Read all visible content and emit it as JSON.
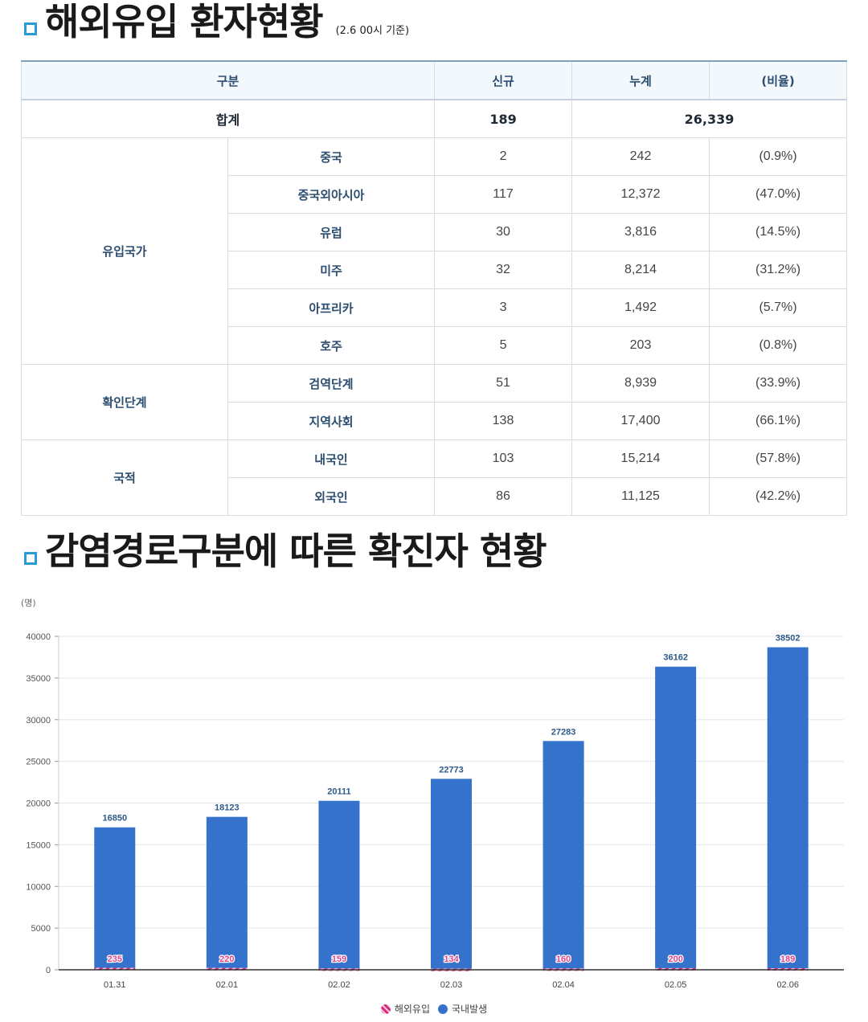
{
  "section1": {
    "title": "해외유입 환자현황",
    "note": "(2.6 00시 기준)"
  },
  "table": {
    "headers": [
      "구분",
      "신규",
      "누계",
      "(비율)"
    ],
    "total": {
      "label": "합계",
      "new": "189",
      "cumulative": "26,339"
    },
    "groups": [
      {
        "name": "유입국가",
        "rows": [
          {
            "label": "중국",
            "new": "2",
            "cumulative": "242",
            "ratio": "(0.9%)"
          },
          {
            "label": "중국외아시아",
            "new": "117",
            "cumulative": "12,372",
            "ratio": "(47.0%)"
          },
          {
            "label": "유럽",
            "new": "30",
            "cumulative": "3,816",
            "ratio": "(14.5%)"
          },
          {
            "label": "미주",
            "new": "32",
            "cumulative": "8,214",
            "ratio": "(31.2%)"
          },
          {
            "label": "아프리카",
            "new": "3",
            "cumulative": "1,492",
            "ratio": "(5.7%)"
          },
          {
            "label": "호주",
            "new": "5",
            "cumulative": "203",
            "ratio": "(0.8%)"
          }
        ]
      },
      {
        "name": "확인단계",
        "rows": [
          {
            "label": "검역단계",
            "new": "51",
            "cumulative": "8,939",
            "ratio": "(33.9%)"
          },
          {
            "label": "지역사회",
            "new": "138",
            "cumulative": "17,400",
            "ratio": "(66.1%)"
          }
        ]
      },
      {
        "name": "국적",
        "rows": [
          {
            "label": "내국인",
            "new": "103",
            "cumulative": "15,214",
            "ratio": "(57.8%)"
          },
          {
            "label": "외국인",
            "new": "86",
            "cumulative": "11,125",
            "ratio": "(42.2%)"
          }
        ]
      }
    ]
  },
  "section2": {
    "title": "감염경로구분에 따른 확진자 현황"
  },
  "chart_data": {
    "type": "bar",
    "unit_label": "(명)",
    "categories": [
      "01.31",
      "02.01",
      "02.02",
      "02.03",
      "02.04",
      "02.05",
      "02.06"
    ],
    "series": [
      {
        "name": "해외유입",
        "values": [
          235,
          220,
          159,
          134,
          160,
          200,
          189
        ],
        "color": "#d6287a"
      },
      {
        "name": "국내발생",
        "values": [
          16850,
          18123,
          20111,
          22773,
          27283,
          36162,
          38502
        ],
        "color": "#3572cc"
      }
    ],
    "ylim": [
      0,
      40000
    ],
    "yticks": [
      0,
      5000,
      10000,
      15000,
      20000,
      25000,
      30000,
      35000,
      40000
    ],
    "grid": true,
    "legend_position": "bottom-center"
  }
}
